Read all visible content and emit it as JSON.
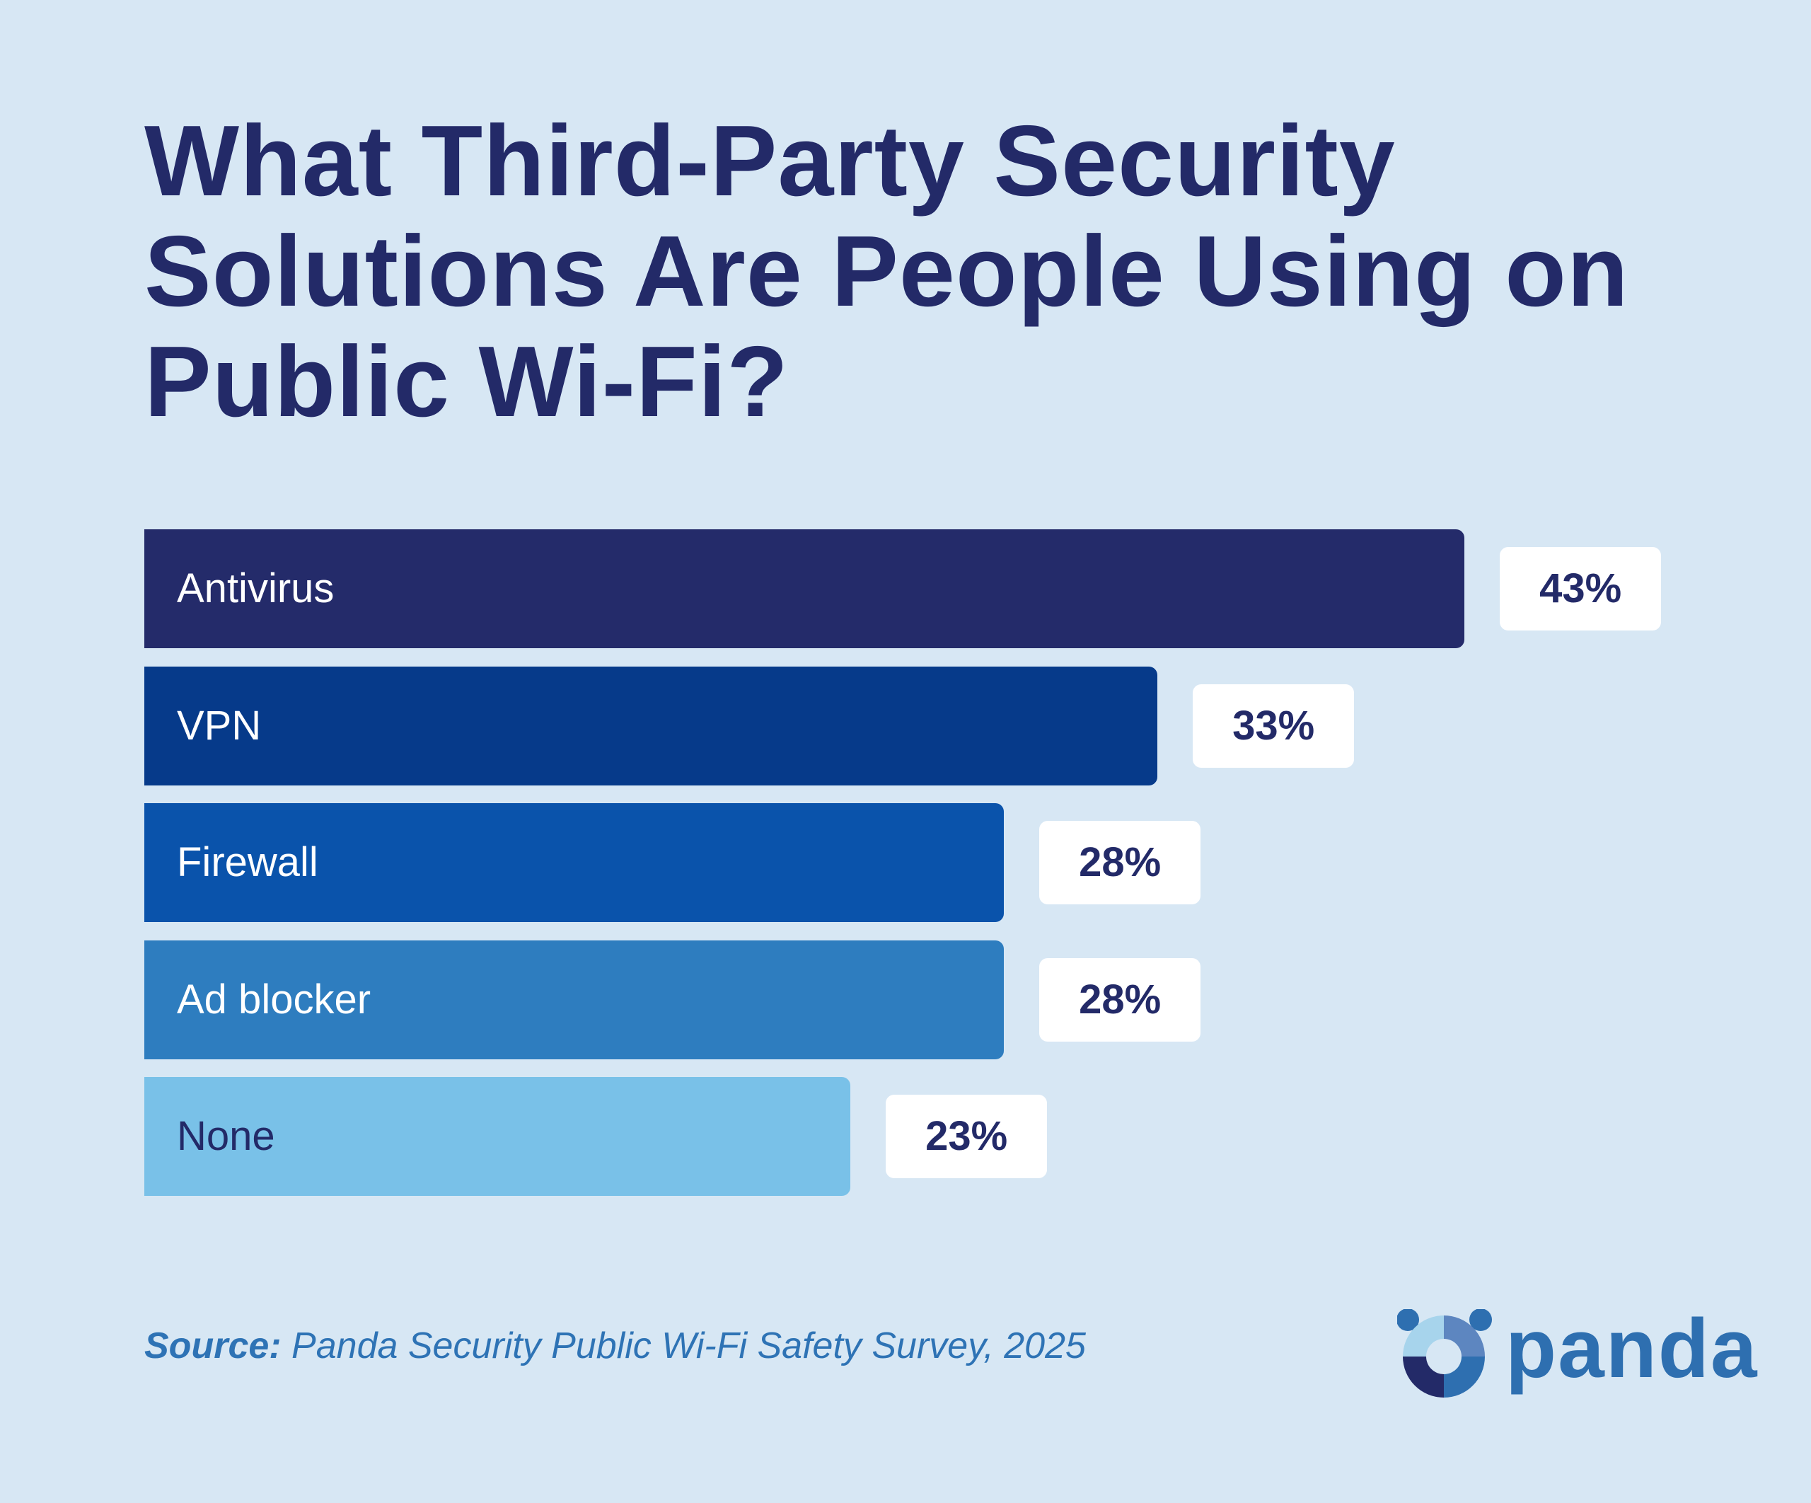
{
  "chart_data": {
    "type": "bar",
    "orientation": "horizontal",
    "title": "What Third-Party Security Solutions Are People Using on Public Wi-Fi?",
    "categories": [
      "Antivirus",
      "VPN",
      "Firewall",
      "Ad blocker",
      "None"
    ],
    "values": [
      43,
      33,
      28,
      28,
      23
    ],
    "value_labels": [
      "43%",
      "33%",
      "28%",
      "28%",
      "23%"
    ],
    "bar_colors": [
      "#242b6a",
      "#063a8a",
      "#0a53ab",
      "#2e7dbf",
      "#79c1e8"
    ],
    "label_colors": [
      "#ffffff",
      "#ffffff",
      "#ffffff",
      "#ffffff",
      "#232a68"
    ],
    "xlabel": "",
    "ylabel": "",
    "grid": false,
    "legend": "none"
  },
  "source": {
    "label": "Source:",
    "text": " Panda Security Public Wi-Fi Safety Survey, 2025"
  },
  "logo": {
    "text": "panda",
    "colors": [
      "#a7d4ec",
      "#5d86c0",
      "#2e6fb0",
      "#232a68"
    ]
  },
  "background": "#d7e7f4"
}
